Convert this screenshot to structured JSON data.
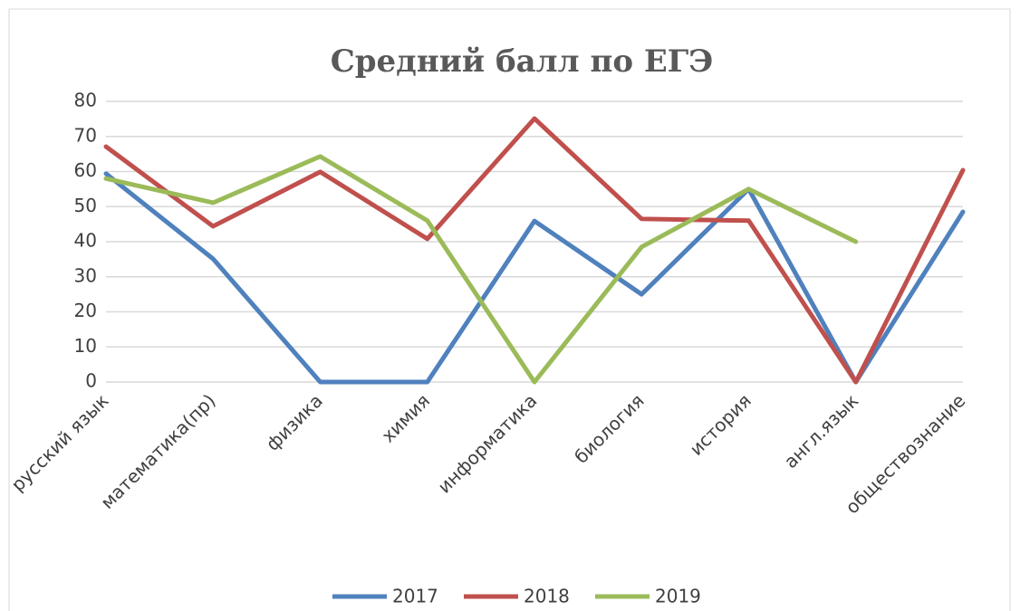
{
  "chart_data": {
    "type": "line",
    "title": "Средний балл по ЕГЭ",
    "categories": [
      "русский язык",
      "математика(пр)",
      "физика",
      "химия",
      "информатика",
      "биология",
      "история",
      "англ.язык",
      "обществознание"
    ],
    "series": [
      {
        "name": "2017",
        "color": "#4f81bd",
        "values": [
          59.4,
          35.1,
          0,
          0,
          45.9,
          25,
          55,
          0,
          48.5
        ]
      },
      {
        "name": "2018",
        "color": "#c0504d",
        "values": [
          67.1,
          44.4,
          59.9,
          40.8,
          75.1,
          46.5,
          46,
          0,
          60.4
        ]
      },
      {
        "name": "2019",
        "color": "#9bbb59",
        "values": [
          58,
          51.1,
          64.3,
          46,
          0,
          38.5,
          55,
          40,
          null
        ]
      }
    ],
    "ylim": [
      0,
      80
    ],
    "yticks": [
      0,
      10,
      20,
      30,
      40,
      50,
      60,
      70,
      80
    ],
    "grid": true,
    "legend": "bottom"
  }
}
